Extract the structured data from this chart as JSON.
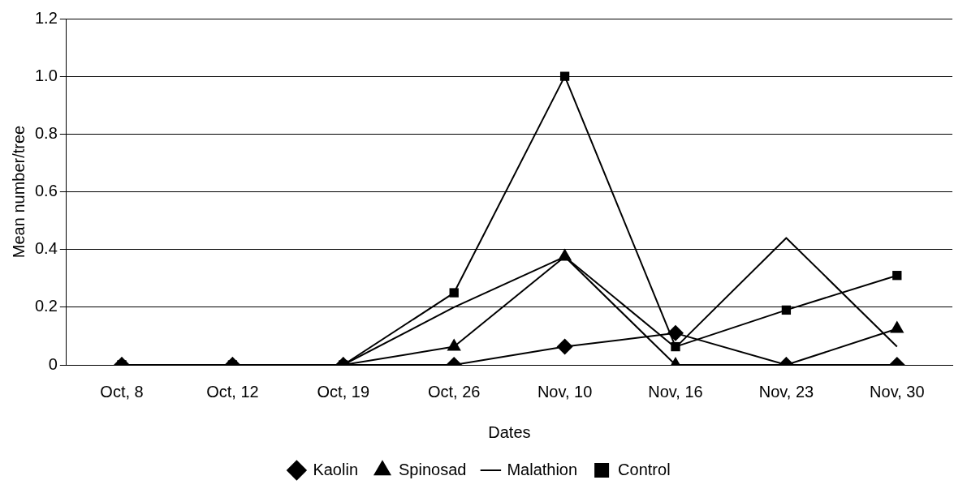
{
  "chart_data": {
    "type": "line",
    "xlabel": "Dates",
    "ylabel": "Mean number/tree",
    "categories": [
      "Oct, 8",
      "Oct, 12",
      "Oct, 19",
      "Oct, 26",
      "Nov, 10",
      "Nov, 16",
      "Nov, 23",
      "Nov, 30"
    ],
    "series": [
      {
        "name": "Kaolin",
        "color": "#000000",
        "marker": "diamond",
        "values": [
          0,
          0,
          0,
          0,
          0.063,
          0.11,
          0,
          0
        ]
      },
      {
        "name": "Spinosad",
        "color": "#000000",
        "marker": "triangle",
        "values": [
          0,
          0,
          0,
          0.063,
          0.375,
          0,
          0,
          0.125
        ]
      },
      {
        "name": "Malathion",
        "color": "#000000",
        "marker": "none",
        "values": [
          0,
          0,
          0,
          0.2,
          0.375,
          0.06,
          0.44,
          0.063
        ]
      },
      {
        "name": "Control",
        "color": "#000000",
        "marker": "square",
        "values": [
          0,
          0,
          0,
          0.25,
          1.0,
          0.063,
          0.19,
          0.31
        ]
      }
    ],
    "ylim": [
      0,
      1.2
    ],
    "yticks": [
      0,
      {
        "value": 0.2,
        "label": "0.2"
      },
      {
        "value": 0.4,
        "label": "0.4"
      },
      {
        "value": 0.6,
        "label": "0.6"
      },
      {
        "value": 0.8,
        "label": "0.8"
      },
      {
        "value": 1.0,
        "label": "1.0"
      },
      {
        "value": 1.2,
        "label": "1.2"
      }
    ],
    "grid": "y",
    "legend": "bottom",
    "line_style": "solid"
  }
}
